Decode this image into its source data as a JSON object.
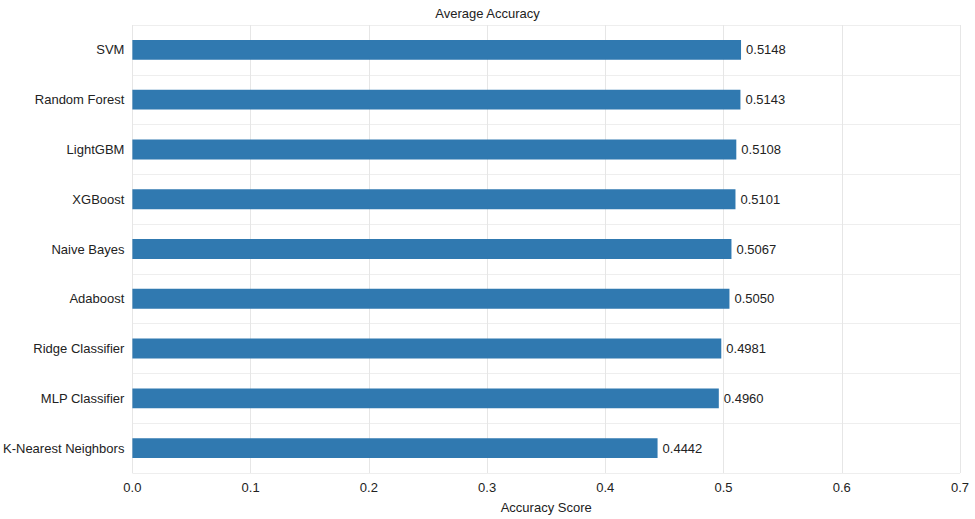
{
  "chart_data": {
    "type": "bar",
    "title": "Average Accuracy",
    "x_label": "Accuracy Score",
    "orientation": "horizontal",
    "categories": [
      "SVM",
      "Random Forest",
      "LightGBM",
      "XGBoost",
      "Naive Bayes",
      "Adaboost",
      "Ridge Classifier",
      "MLP Classifier",
      "K-Nearest Neighbors"
    ],
    "values": [
      0.5148,
      0.5143,
      0.5108,
      0.5101,
      0.5067,
      0.505,
      0.4981,
      0.496,
      0.4442
    ],
    "value_labels": [
      "0.5148",
      "0.5143",
      "0.5108",
      "0.5101",
      "0.5067",
      "0.5050",
      "0.4981",
      "0.4960",
      "0.4442"
    ],
    "data_labels": true,
    "color": "#3079b0",
    "xlim": [
      0,
      0.7
    ],
    "xticks": [
      {
        "value": 0,
        "label": "0.0"
      },
      0.1,
      0.2,
      0.3,
      0.4,
      0.5,
      0.6,
      0.7
    ],
    "grid": true
  }
}
